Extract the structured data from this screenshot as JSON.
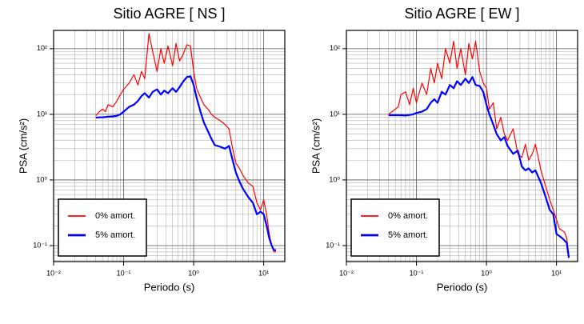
{
  "chart_data": [
    {
      "type": "line",
      "title": "Sitio AGRE [ NS ]",
      "xlabel": "Periodo (s)",
      "ylabel": "PSA (cm/s²)",
      "xscale": "log",
      "yscale": "log",
      "grid": true,
      "legend": "lower left",
      "xlim": [
        0.01,
        20
      ],
      "ylim": [
        0.057,
        190
      ],
      "xticks": [
        {
          "value": 0.01,
          "label": "10⁻²"
        },
        {
          "value": 0.1,
          "label": "10⁻¹"
        },
        {
          "value": 1,
          "label": "10⁰"
        },
        {
          "value": 10,
          "label": "10¹"
        }
      ],
      "yticks": [
        {
          "value": 0.1,
          "label": "10⁻¹"
        },
        {
          "value": 1,
          "label": "10⁰"
        },
        {
          "value": 10,
          "label": "10¹"
        },
        {
          "value": 100,
          "label": "10²"
        }
      ],
      "xminorticks": [
        0.02,
        0.03,
        0.04,
        0.05,
        0.06,
        0.07,
        0.08,
        0.09,
        0.2,
        0.3,
        0.4,
        0.5,
        0.6,
        0.7,
        0.8,
        0.9,
        2,
        3,
        4,
        5,
        6,
        7,
        8,
        9,
        20
      ],
      "yminorticks": [
        0.06,
        0.07,
        0.08,
        0.09,
        0.2,
        0.3,
        0.4,
        0.5,
        0.6,
        0.7,
        0.8,
        0.9,
        2,
        3,
        4,
        5,
        6,
        7,
        8,
        9,
        20,
        30,
        40,
        50,
        60,
        70,
        80,
        90
      ],
      "x": [
        0.04,
        0.045,
        0.05,
        0.055,
        0.06,
        0.07,
        0.08,
        0.09,
        0.1,
        0.12,
        0.14,
        0.16,
        0.18,
        0.2,
        0.23,
        0.26,
        0.3,
        0.34,
        0.38,
        0.43,
        0.5,
        0.56,
        0.63,
        0.7,
        0.8,
        0.9,
        1.0,
        1.1,
        1.25,
        1.4,
        1.6,
        1.8,
        2.0,
        2.4,
        2.8,
        3.2,
        3.6,
        4.0,
        4.5,
        5.0,
        6.0,
        7.0,
        8.0,
        9.0,
        10,
        11,
        12,
        13,
        14,
        15
      ],
      "series": [
        {
          "name": "0% amort.",
          "color": "#ff0000",
          "width": 1.2,
          "values": [
            9.5,
            11,
            12,
            11,
            14,
            13,
            16,
            20,
            24,
            30,
            40,
            28,
            45,
            35,
            170,
            90,
            45,
            100,
            60,
            110,
            55,
            120,
            65,
            80,
            115,
            110,
            45,
            25,
            18,
            14,
            12,
            10,
            9,
            8,
            7,
            6,
            3,
            1.8,
            1.5,
            1.2,
            0.9,
            0.8,
            0.45,
            0.35,
            0.5,
            0.3,
            0.15,
            0.1,
            0.08,
            0.08
          ]
        },
        {
          "name": "5% amort.",
          "color": "#0000ff",
          "width": 2.2,
          "values": [
            8.9,
            9,
            9,
            9.1,
            9.2,
            9.3,
            9.5,
            10,
            11,
            13,
            14,
            16,
            19,
            21,
            18,
            22,
            24,
            20,
            23,
            21,
            25,
            22,
            26,
            31,
            37,
            38,
            28,
            18,
            11,
            7.5,
            5.5,
            4.2,
            3.4,
            3.2,
            3.0,
            3.3,
            2.0,
            1.3,
            0.95,
            0.75,
            0.55,
            0.45,
            0.3,
            0.33,
            0.3,
            0.2,
            0.13,
            0.1,
            0.085,
            0.085
          ]
        }
      ]
    },
    {
      "type": "line",
      "title": "Sitio AGRE [ EW ]",
      "xlabel": "Periodo (s)",
      "ylabel": "PSA (cm/s²)",
      "xscale": "log",
      "yscale": "log",
      "grid": true,
      "legend": "lower left",
      "xlim": [
        0.01,
        20
      ],
      "ylim": [
        0.057,
        190
      ],
      "xticks": [
        {
          "value": 0.01,
          "label": "10⁻²"
        },
        {
          "value": 0.1,
          "label": "10⁻¹"
        },
        {
          "value": 1,
          "label": "10⁰"
        },
        {
          "value": 10,
          "label": "10¹"
        }
      ],
      "yticks": [
        {
          "value": 0.1,
          "label": "10⁻¹"
        },
        {
          "value": 1,
          "label": "10⁰"
        },
        {
          "value": 10,
          "label": "10¹"
        },
        {
          "value": 100,
          "label": "10²"
        }
      ],
      "xminorticks": [
        0.02,
        0.03,
        0.04,
        0.05,
        0.06,
        0.07,
        0.08,
        0.09,
        0.2,
        0.3,
        0.4,
        0.5,
        0.6,
        0.7,
        0.8,
        0.9,
        2,
        3,
        4,
        5,
        6,
        7,
        8,
        9,
        20
      ],
      "yminorticks": [
        0.06,
        0.07,
        0.08,
        0.09,
        0.2,
        0.3,
        0.4,
        0.5,
        0.6,
        0.7,
        0.8,
        0.9,
        2,
        3,
        4,
        5,
        6,
        7,
        8,
        9,
        20,
        30,
        40,
        50,
        60,
        70,
        80,
        90
      ],
      "x": [
        0.04,
        0.045,
        0.05,
        0.055,
        0.06,
        0.07,
        0.08,
        0.09,
        0.1,
        0.12,
        0.14,
        0.16,
        0.18,
        0.2,
        0.23,
        0.26,
        0.3,
        0.34,
        0.38,
        0.43,
        0.5,
        0.56,
        0.63,
        0.7,
        0.8,
        0.9,
        1.0,
        1.1,
        1.25,
        1.4,
        1.6,
        1.8,
        2.0,
        2.4,
        2.8,
        3.2,
        3.6,
        4.0,
        4.5,
        5.0,
        6.0,
        7.0,
        8.0,
        9.0,
        10,
        11,
        12,
        13,
        14,
        15
      ],
      "series": [
        {
          "name": "0% amort.",
          "color": "#ff0000",
          "width": 1.2,
          "values": [
            10,
            11,
            12,
            13,
            20,
            22,
            14,
            25,
            15,
            30,
            20,
            50,
            30,
            60,
            35,
            100,
            60,
            130,
            50,
            100,
            40,
            120,
            70,
            130,
            45,
            30,
            25,
            12,
            15,
            6,
            9,
            5,
            4,
            6,
            2.5,
            2.2,
            3.5,
            2,
            2.5,
            3.5,
            1.4,
            0.8,
            0.5,
            0.35,
            0.25,
            0.18,
            0.17,
            0.16,
            0.13,
            0.07
          ]
        },
        {
          "name": "5% amort.",
          "color": "#0000ff",
          "width": 2.2,
          "values": [
            9.7,
            9.7,
            9.7,
            9.7,
            9.7,
            9.6,
            9.8,
            10,
            10.5,
            11,
            12,
            15,
            17,
            15,
            22,
            20,
            28,
            25,
            32,
            28,
            35,
            30,
            37,
            28,
            27,
            22,
            14,
            10,
            7,
            5,
            4,
            4.5,
            3.3,
            2.5,
            2.8,
            1.6,
            1.4,
            1.5,
            1.3,
            1.4,
            0.9,
            0.55,
            0.35,
            0.3,
            0.15,
            0.14,
            0.13,
            0.12,
            0.11,
            0.065
          ]
        }
      ]
    }
  ]
}
